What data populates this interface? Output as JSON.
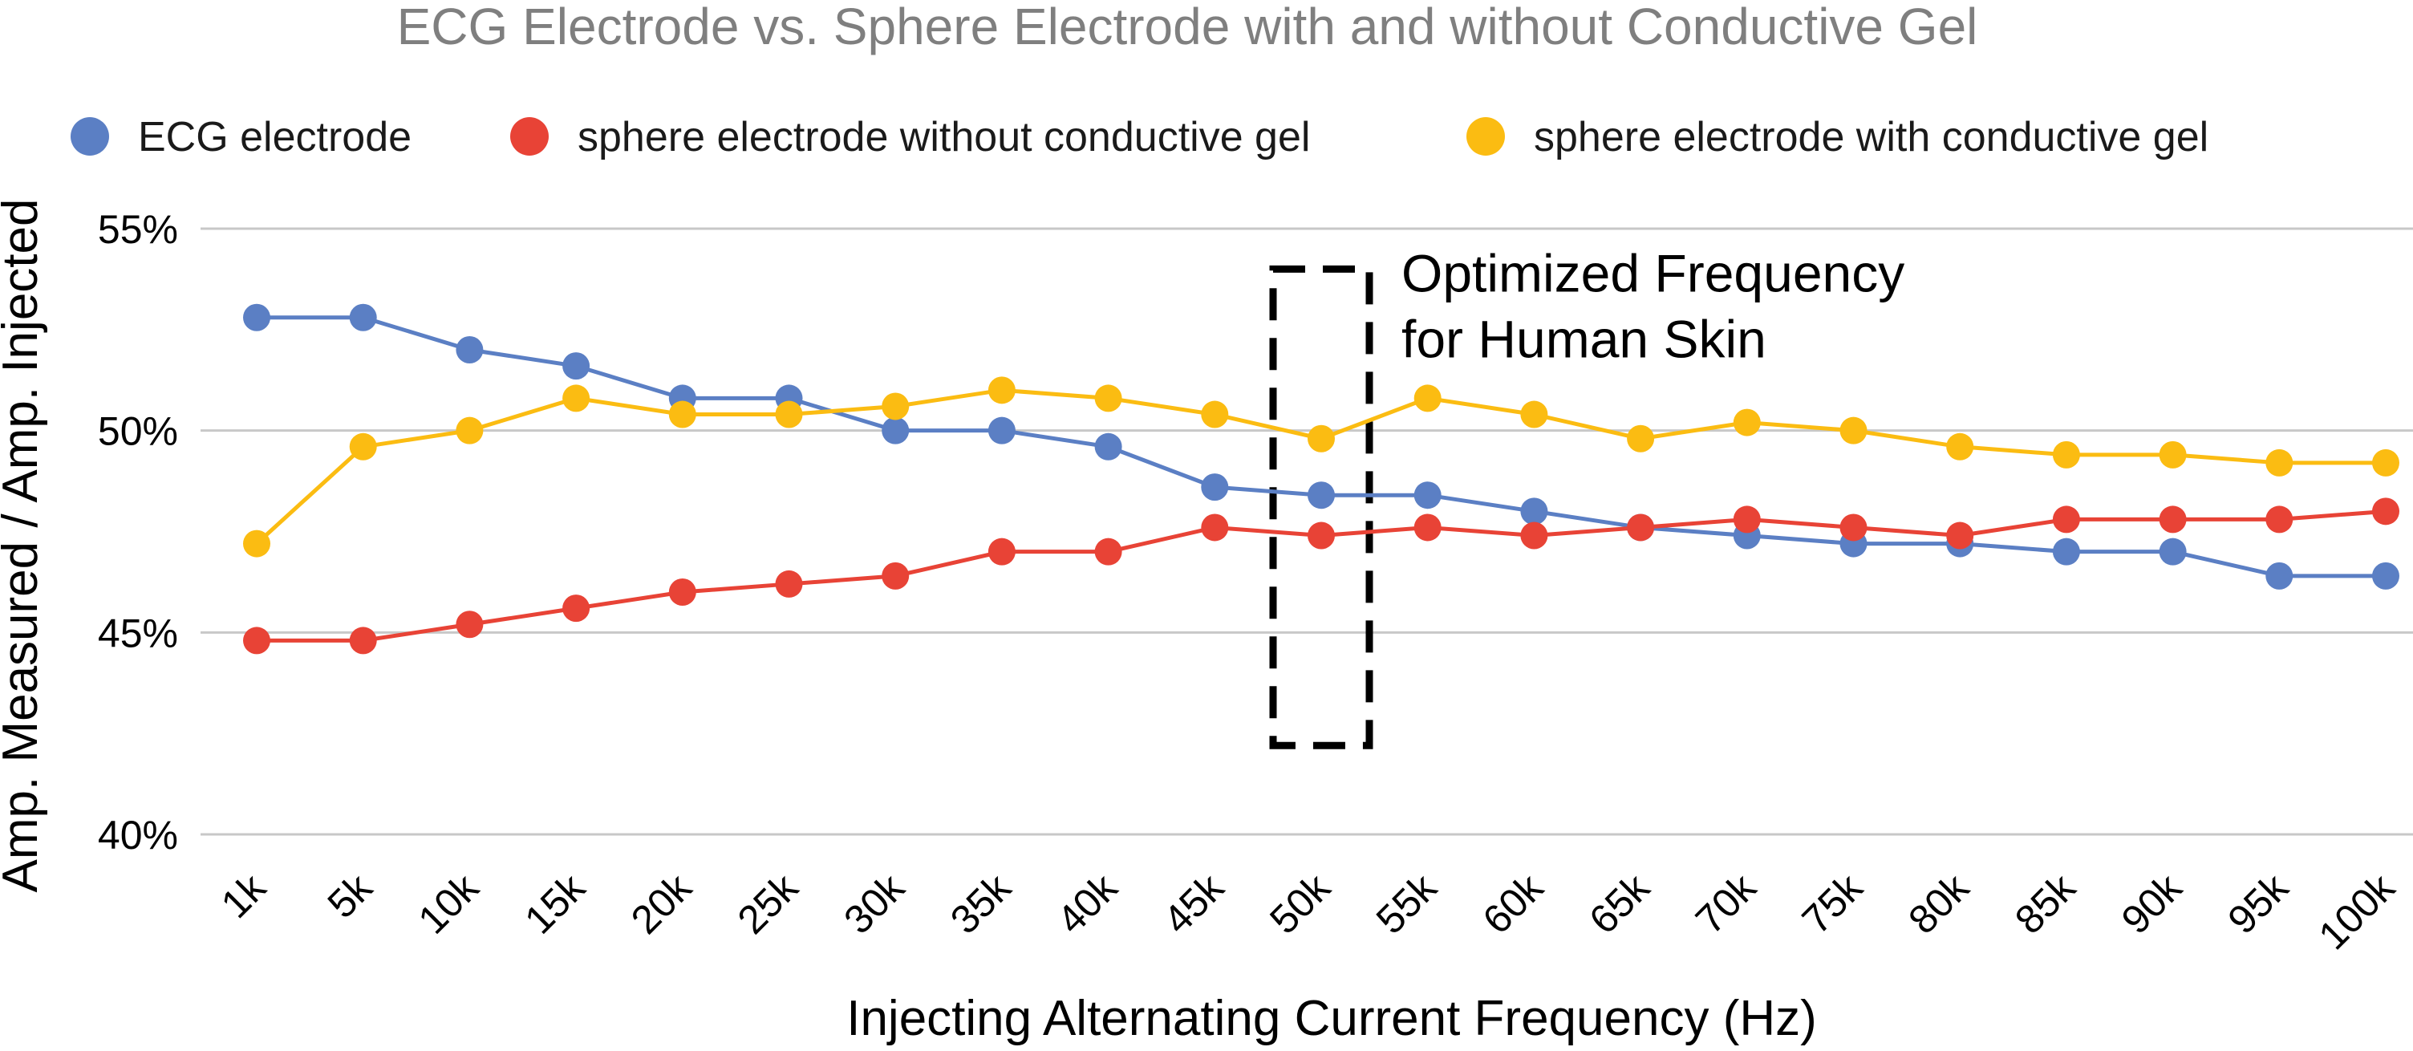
{
  "chart_data": {
    "type": "line",
    "title": "ECG Electrode vs. Sphere Electrode with and without Conductive Gel",
    "xlabel": "Injecting Alternating Current Frequency (Hz)",
    "ylabel": "Amp. Measured / Amp. Injected",
    "categories": [
      "1k",
      "5k",
      "10k",
      "15k",
      "20k",
      "25k",
      "30k",
      "35k",
      "40k",
      "45k",
      "50k",
      "55k",
      "60k",
      "65k",
      "70k",
      "75k",
      "80k",
      "85k",
      "90k",
      "95k",
      "100k"
    ],
    "yticks": [
      40,
      45,
      50,
      55
    ],
    "ytick_labels": [
      "40%",
      "45%",
      "50%",
      "55%"
    ],
    "ylim": [
      40,
      55
    ],
    "grid": true,
    "legend_position": "top",
    "series": [
      {
        "name": "ECG electrode",
        "color": "#5b7fc4",
        "values": [
          52.8,
          52.8,
          52.0,
          51.6,
          50.8,
          50.8,
          50.0,
          50.0,
          49.6,
          48.6,
          48.4,
          48.4,
          48.0,
          47.6,
          47.4,
          47.2,
          47.2,
          47.0,
          47.0,
          46.4,
          46.4
        ]
      },
      {
        "name": "sphere electrode without conductive gel",
        "color": "#e84336",
        "values": [
          44.8,
          44.8,
          45.2,
          45.6,
          46.0,
          46.2,
          46.4,
          47.0,
          47.0,
          47.6,
          47.4,
          47.6,
          47.4,
          47.6,
          47.8,
          47.6,
          47.4,
          47.8,
          47.8,
          47.8,
          48.0
        ]
      },
      {
        "name": "sphere electrode with conductive gel",
        "color": "#fbbc12",
        "values": [
          47.2,
          49.6,
          50.0,
          50.8,
          50.4,
          50.4,
          50.6,
          51.0,
          50.8,
          50.4,
          49.8,
          50.8,
          50.4,
          49.8,
          50.2,
          50.0,
          49.6,
          49.4,
          49.4,
          49.2,
          49.2
        ]
      }
    ],
    "annotation": {
      "lines": [
        "Optimized Frequency",
        "for Human Skin"
      ],
      "highlight_category": "50k",
      "y_range": [
        42.2,
        54.0
      ]
    }
  }
}
